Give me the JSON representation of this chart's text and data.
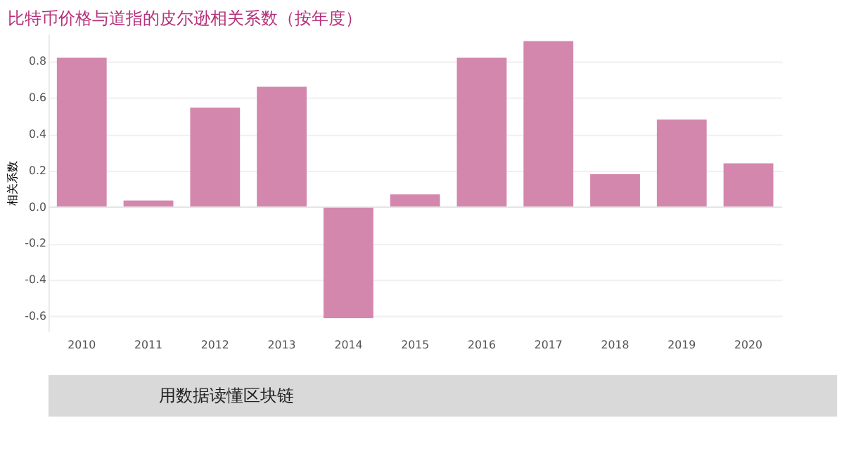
{
  "chart_data": {
    "type": "bar",
    "title": "比特币价格与道指的皮尔逊相关系数（按年度）",
    "ylabel": "相关系数",
    "categories": [
      "2010",
      "2011",
      "2012",
      "2013",
      "2014",
      "2015",
      "2016",
      "2017",
      "2018",
      "2019",
      "2020"
    ],
    "values": [
      0.82,
      0.035,
      0.545,
      0.66,
      -0.61,
      0.07,
      0.82,
      0.91,
      0.18,
      0.48,
      0.24
    ],
    "color": "#d487ad",
    "ylim": [
      -0.68,
      0.95
    ],
    "yticks": [
      -0.6,
      -0.4,
      -0.2,
      {
        "value": 0,
        "label": "0.0"
      },
      0.2,
      0.4,
      0.6,
      0.8
    ],
    "grid": "y",
    "annotations": [
      "用数据读懂区块链"
    ]
  }
}
